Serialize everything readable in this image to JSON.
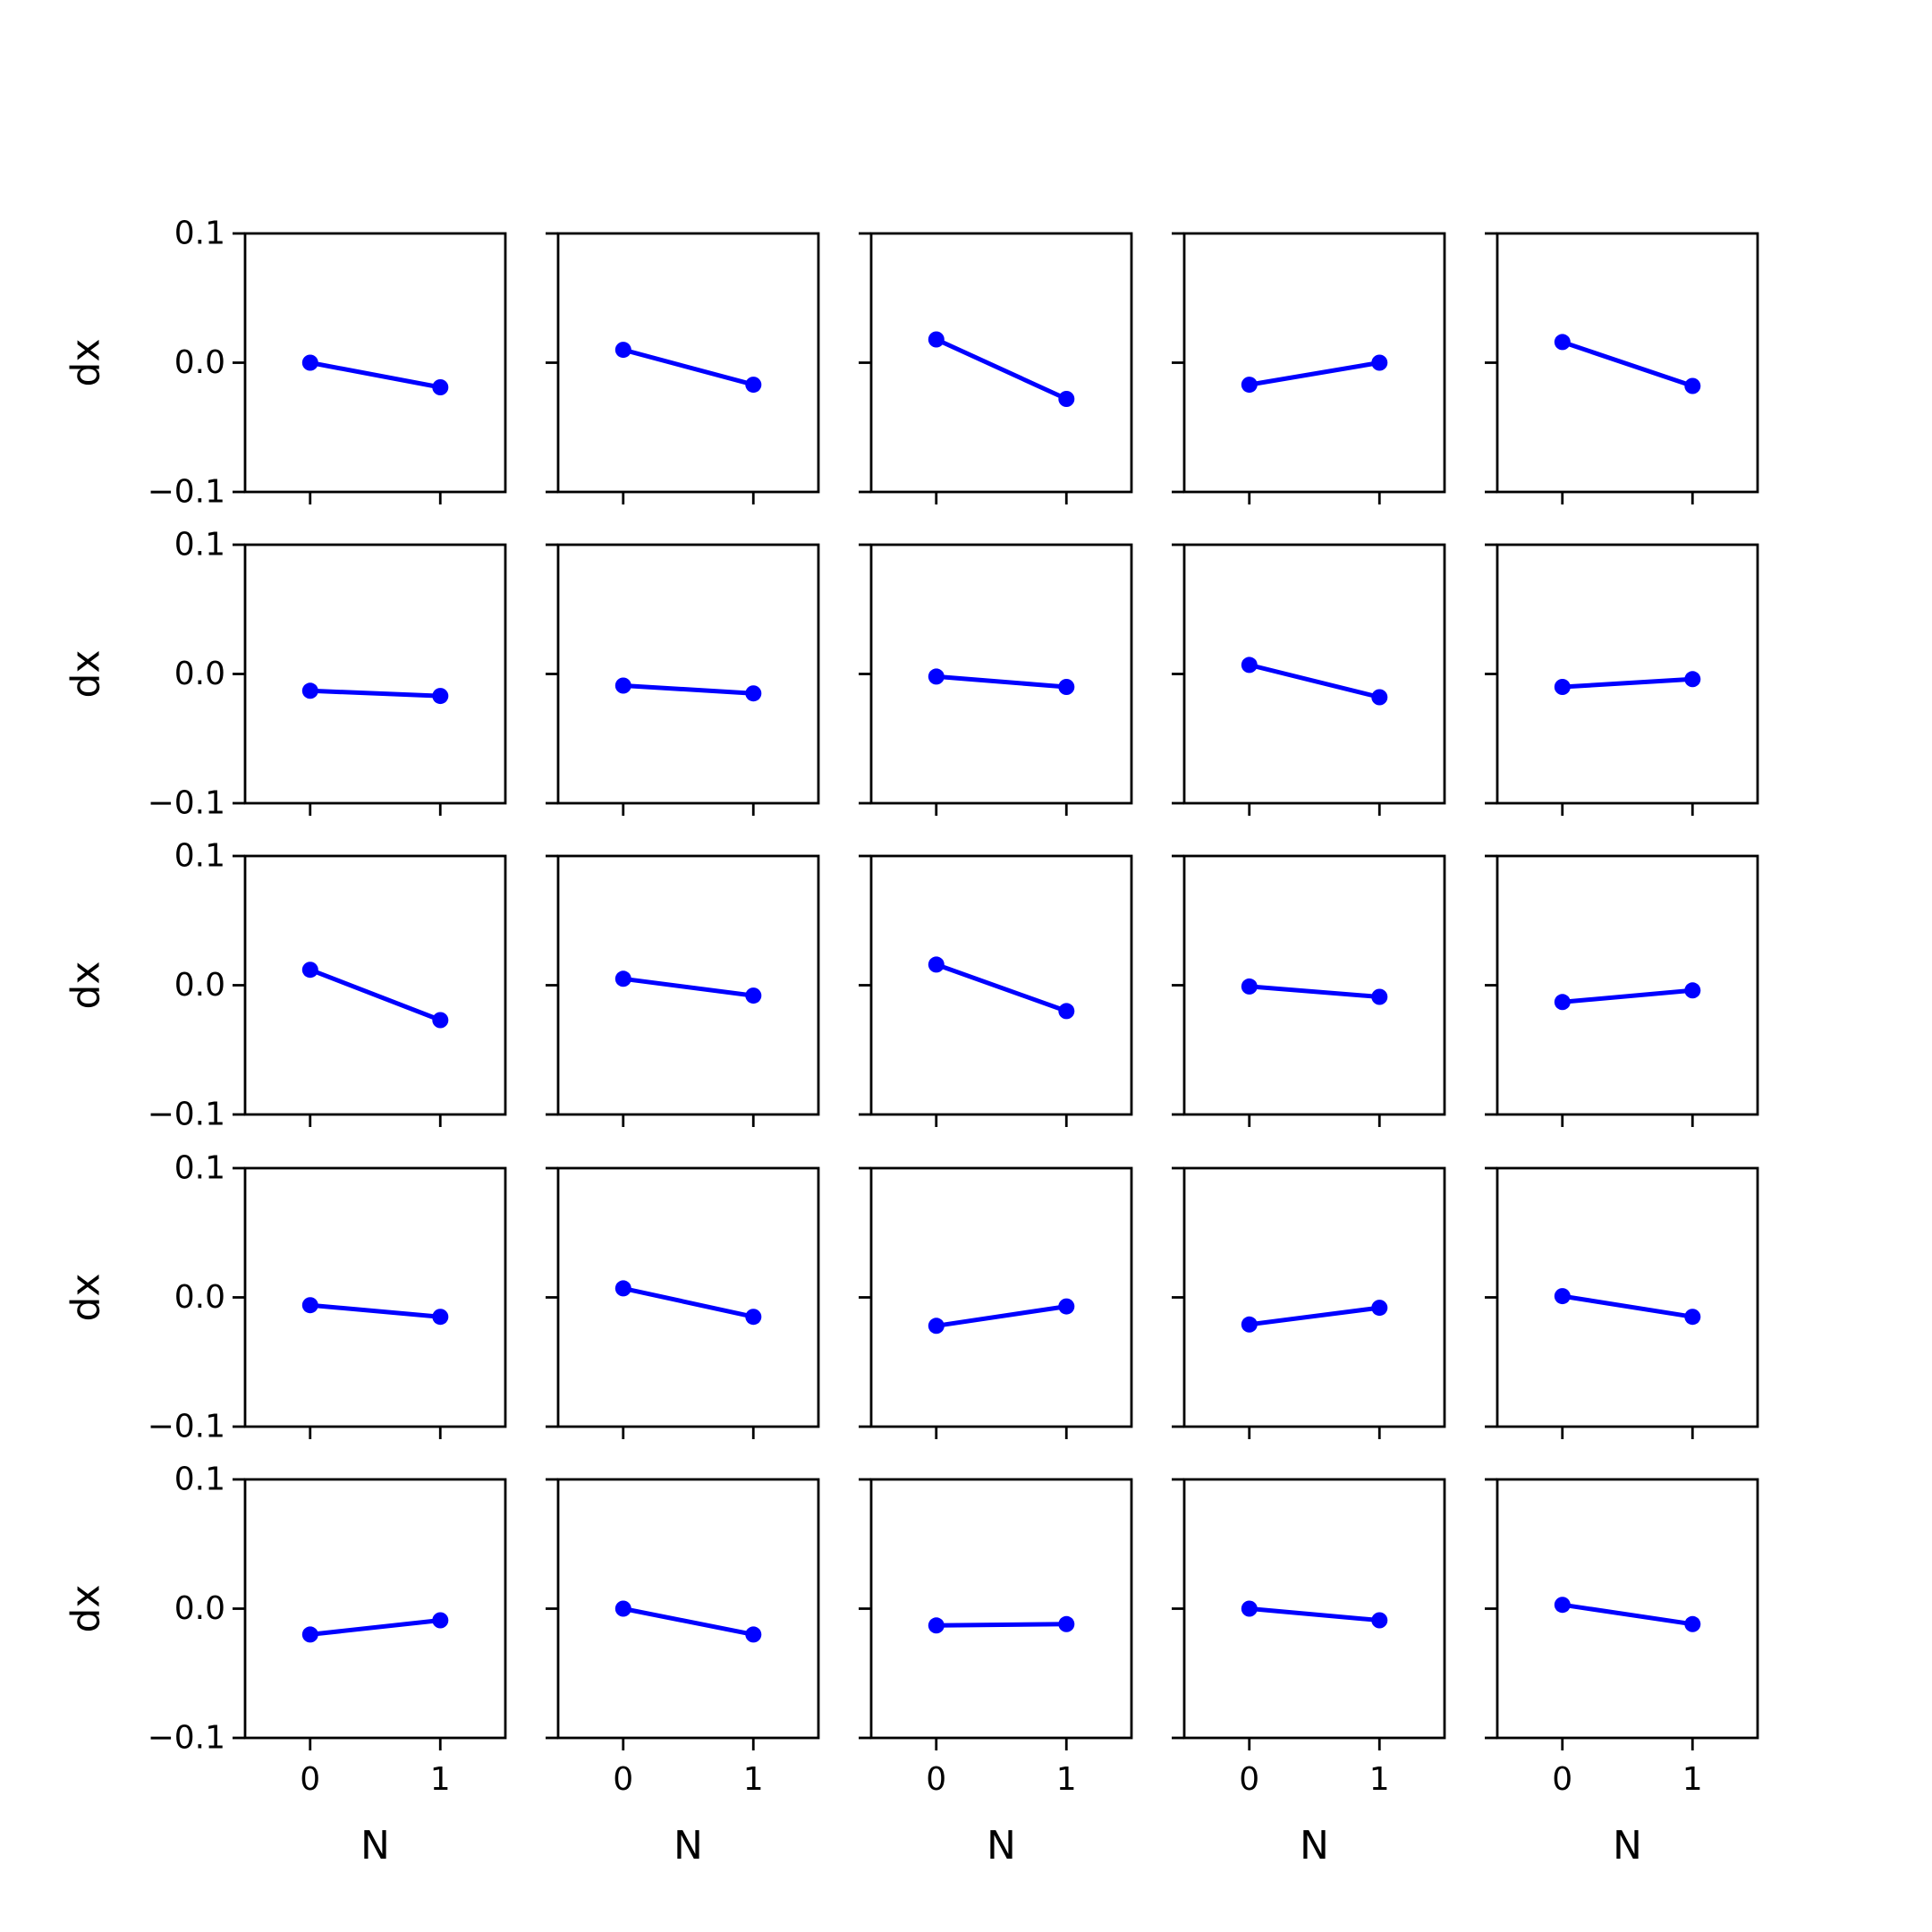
{
  "colors": {
    "series": "#0000ff",
    "axes": "#000000",
    "background": "#ffffff"
  },
  "chart_data": {
    "type": "line",
    "layout": "5x5 grid of small line plots, shared x and y axes",
    "grid": false,
    "xlabel": "N",
    "ylabel": "dx",
    "x": [
      0,
      1
    ],
    "xlim": [
      -0.5,
      1.5
    ],
    "ylim": [
      -0.1,
      0.1
    ],
    "xticks": [
      0,
      1
    ],
    "xtick_labels": [
      "0",
      "1"
    ],
    "yticks": [
      0.1,
      0.0,
      -0.1
    ],
    "ytick_labels": [
      "0.1",
      "0.0",
      "−0.1"
    ],
    "marker": "circle",
    "panels": [
      {
        "y": [
          0.0,
          -0.019
        ]
      },
      {
        "y": [
          0.01,
          -0.017
        ]
      },
      {
        "y": [
          0.018,
          -0.028
        ]
      },
      {
        "y": [
          -0.017,
          0.0
        ]
      },
      {
        "y": [
          0.016,
          -0.018
        ]
      },
      {
        "y": [
          -0.013,
          -0.017
        ]
      },
      {
        "y": [
          -0.009,
          -0.015
        ]
      },
      {
        "y": [
          -0.002,
          -0.01
        ]
      },
      {
        "y": [
          0.007,
          -0.018
        ]
      },
      {
        "y": [
          -0.01,
          -0.004
        ]
      },
      {
        "y": [
          0.012,
          -0.027
        ]
      },
      {
        "y": [
          0.005,
          -0.008
        ]
      },
      {
        "y": [
          0.016,
          -0.02
        ]
      },
      {
        "y": [
          -0.001,
          -0.009
        ]
      },
      {
        "y": [
          -0.013,
          -0.004
        ]
      },
      {
        "y": [
          -0.006,
          -0.015
        ]
      },
      {
        "y": [
          0.007,
          -0.015
        ]
      },
      {
        "y": [
          -0.022,
          -0.007
        ]
      },
      {
        "y": [
          -0.021,
          -0.008
        ]
      },
      {
        "y": [
          0.001,
          -0.015
        ]
      },
      {
        "y": [
          -0.02,
          -0.009
        ]
      },
      {
        "y": [
          0.0,
          -0.02
        ]
      },
      {
        "y": [
          -0.013,
          -0.012
        ]
      },
      {
        "y": [
          0.0,
          -0.009
        ]
      },
      {
        "y": [
          0.003,
          -0.012
        ]
      }
    ]
  }
}
